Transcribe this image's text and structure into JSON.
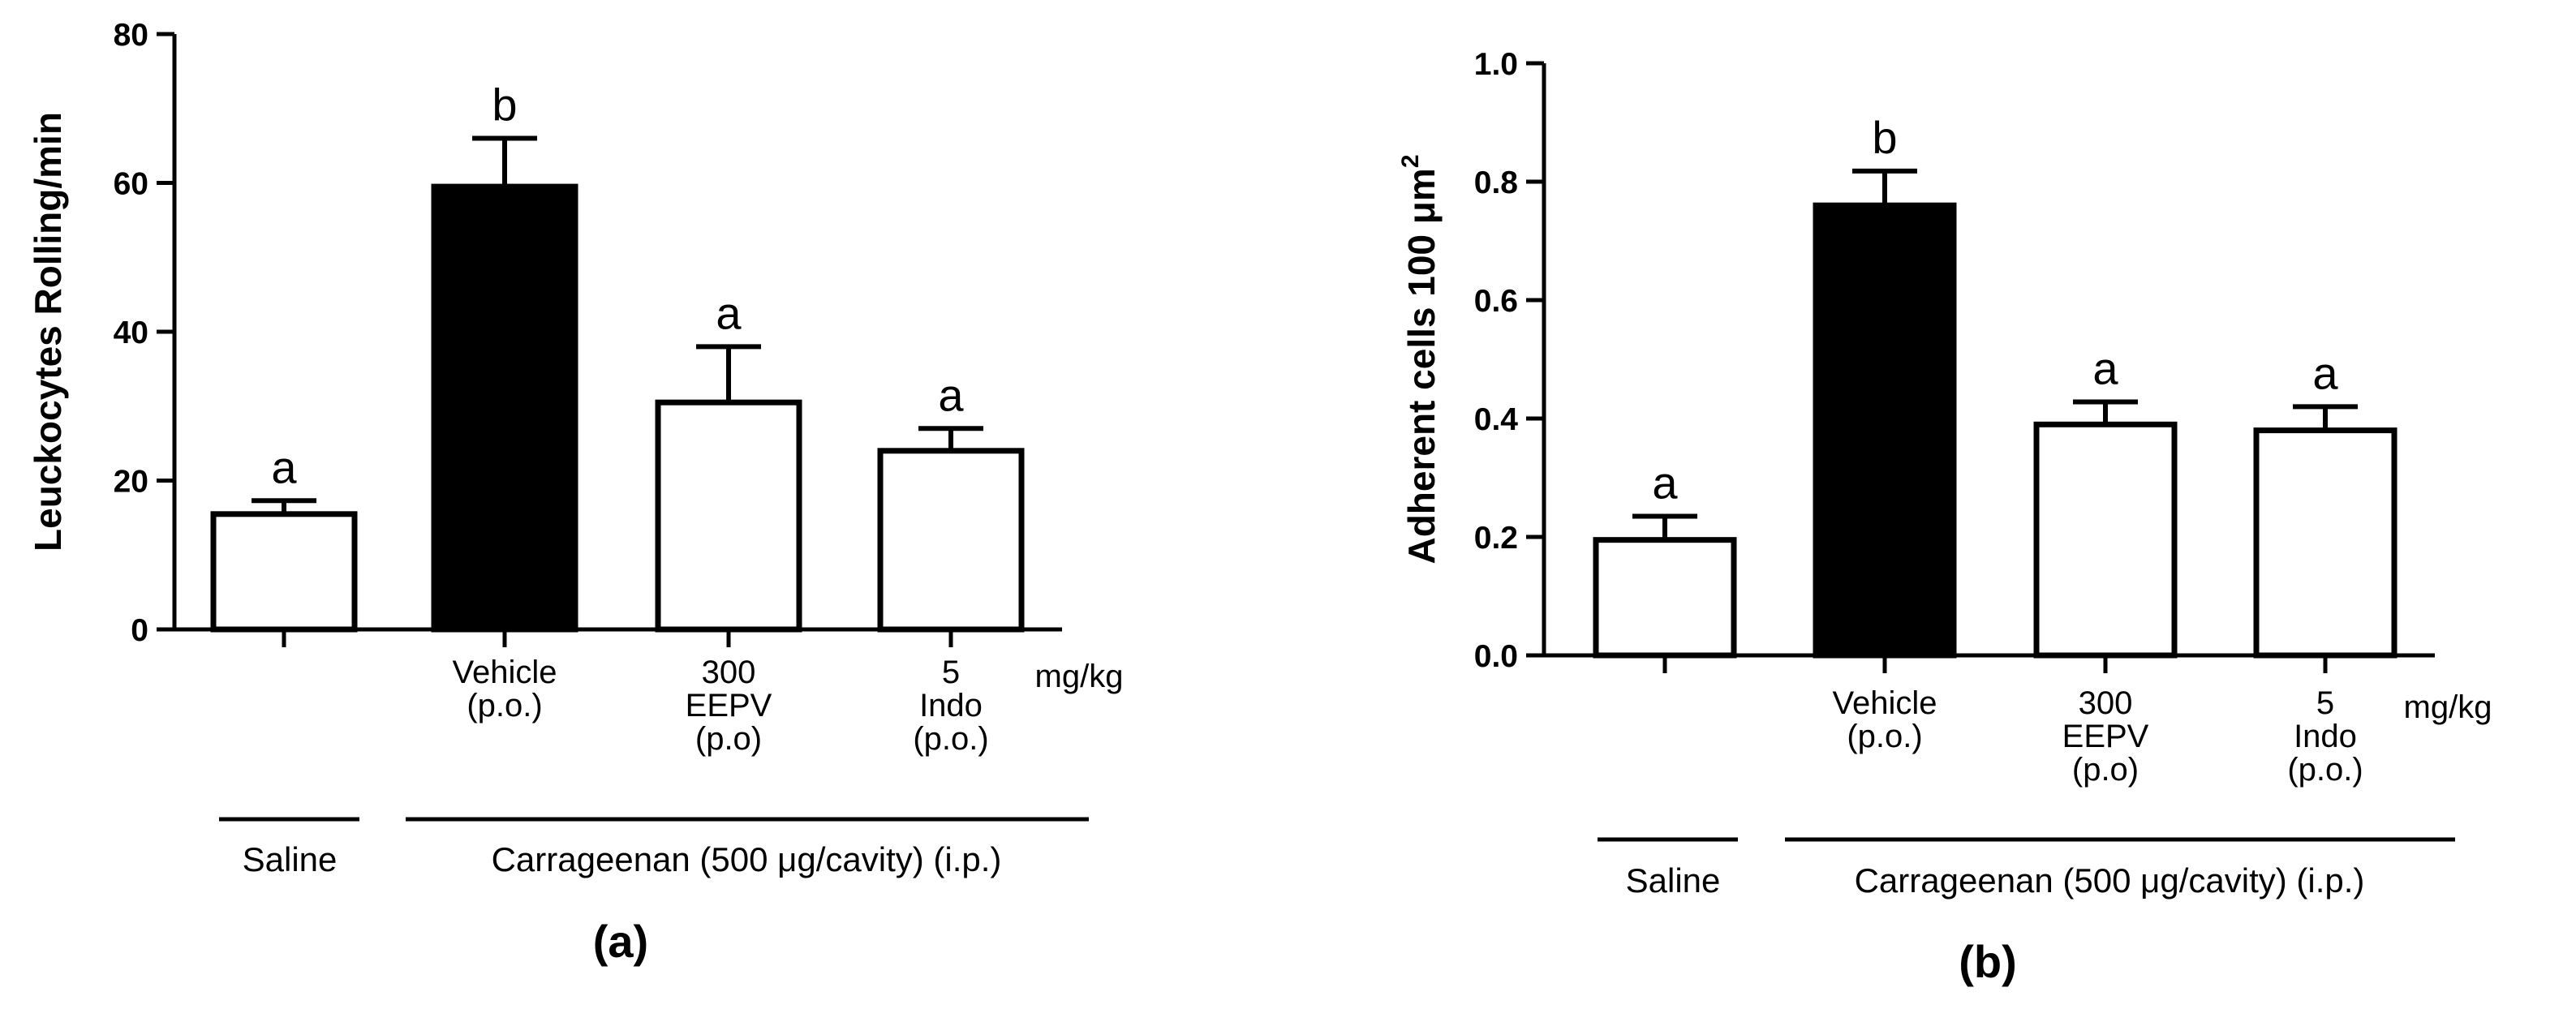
{
  "chart_data": [
    {
      "type": "bar",
      "panel_label": "(a)",
      "ylabel": "Leuckocytes Rolling/min",
      "ylim": [
        0,
        80
      ],
      "yticks": [
        "0",
        "20",
        "40",
        "60",
        "80"
      ],
      "categories": [
        {
          "lines": []
        },
        {
          "lines": [
            "Vehicle",
            "(p.o.)"
          ]
        },
        {
          "lines": [
            "300",
            "EEPV",
            "(p.o)"
          ]
        },
        {
          "lines": [
            "5",
            "Indo",
            "(p.o.)"
          ]
        }
      ],
      "values": [
        15.5,
        59.5,
        30.5,
        24
      ],
      "errors": [
        1.8,
        6.5,
        7.5,
        3
      ],
      "significance": [
        "a",
        "b",
        "a",
        "a"
      ],
      "bar_fills": [
        "#ffffff",
        "#000000",
        "#ffffff",
        "#ffffff"
      ],
      "unit_label": "mg/kg",
      "group_labels": {
        "saline": "Saline",
        "carrageenan": "Carrageenan (500 μg/cavity) (i.p.)"
      }
    },
    {
      "type": "bar",
      "panel_label": "(b)",
      "ylabel": "Adherent cells 100 μm",
      "ylabel_superscript": "2",
      "ylim": [
        0,
        1.0
      ],
      "yticks": [
        "0.0",
        "0.2",
        "0.4",
        "0.6",
        "0.8",
        "1.0"
      ],
      "categories": [
        {
          "lines": []
        },
        {
          "lines": [
            "Vehicle",
            "(p.o.)"
          ]
        },
        {
          "lines": [
            "300",
            "EEPV",
            "(p.o)"
          ]
        },
        {
          "lines": [
            "5",
            "Indo",
            "(p.o.)"
          ]
        }
      ],
      "values": [
        0.195,
        0.76,
        0.39,
        0.38
      ],
      "errors": [
        0.04,
        0.058,
        0.038,
        0.04
      ],
      "significance": [
        "a",
        "b",
        "a",
        "a"
      ],
      "bar_fills": [
        "#ffffff",
        "#000000",
        "#ffffff",
        "#ffffff"
      ],
      "unit_label": "mg/kg",
      "group_labels": {
        "saline": "Saline",
        "carrageenan": "Carrageenan (500 μg/cavity) (i.p.)"
      }
    }
  ]
}
